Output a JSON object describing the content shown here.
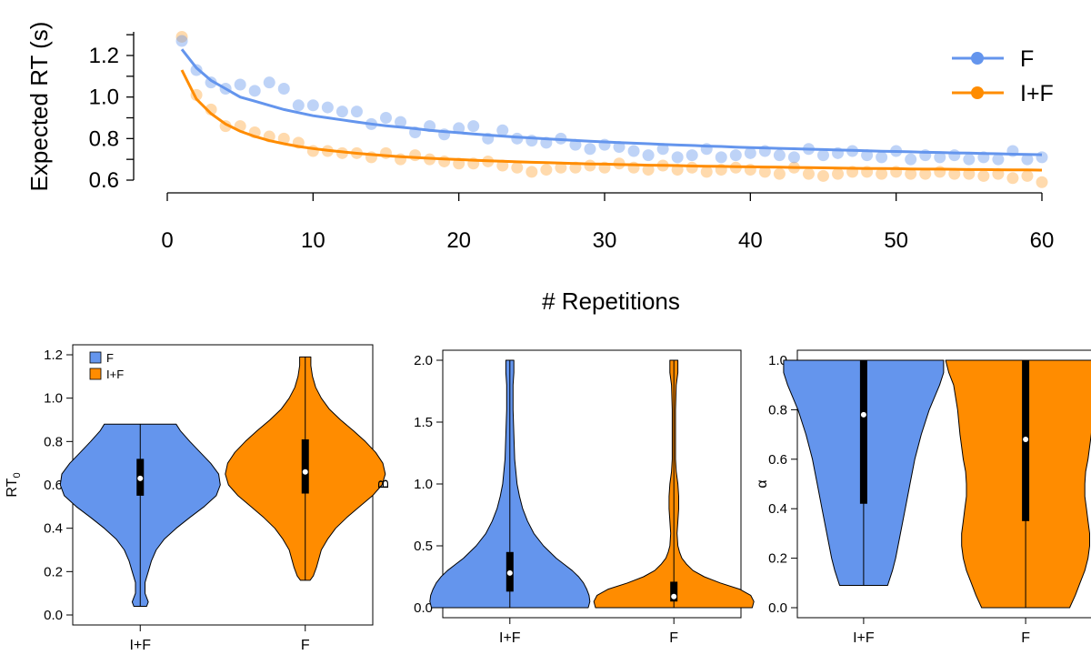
{
  "colors": {
    "F": "#6495ED",
    "IF": "#FF8C00",
    "axis": "#000000"
  },
  "chart_data": [
    {
      "type": "scatter",
      "title": "",
      "xlabel": "# Repetitions",
      "ylabel": "Expected RT (s)",
      "xlim": [
        0,
        60
      ],
      "ylim": [
        0.6,
        1.3
      ],
      "xticks": [
        0,
        10,
        20,
        30,
        40,
        50,
        60
      ],
      "xtick_labels": [
        "0",
        "10",
        "20",
        "30",
        "40",
        "50",
        "60"
      ],
      "yticks": [
        0.6,
        0.8,
        1.0,
        1.2
      ],
      "ytick_labels": [
        "0.6",
        "0.8",
        "1.0",
        "1.2"
      ],
      "legend": {
        "position": "top-right",
        "entries": [
          "F",
          "I+F"
        ]
      },
      "x": [
        1,
        2,
        3,
        4,
        5,
        6,
        7,
        8,
        9,
        10,
        11,
        12,
        13,
        14,
        15,
        16,
        17,
        18,
        19,
        20,
        21,
        22,
        23,
        24,
        25,
        26,
        27,
        28,
        29,
        30,
        31,
        32,
        33,
        34,
        35,
        36,
        37,
        38,
        39,
        40,
        41,
        42,
        43,
        44,
        45,
        46,
        47,
        48,
        49,
        50,
        51,
        52,
        53,
        54,
        55,
        56,
        57,
        58,
        59,
        60
      ],
      "series": [
        {
          "name": "F",
          "color": "#6495ED",
          "points": [
            1.27,
            1.13,
            1.07,
            1.04,
            1.06,
            1.03,
            1.07,
            1.04,
            0.96,
            0.96,
            0.95,
            0.93,
            0.93,
            0.87,
            0.9,
            0.88,
            0.83,
            0.86,
            0.82,
            0.85,
            0.86,
            0.8,
            0.84,
            0.8,
            0.79,
            0.78,
            0.8,
            0.77,
            0.75,
            0.77,
            0.76,
            0.74,
            0.72,
            0.75,
            0.71,
            0.72,
            0.75,
            0.71,
            0.72,
            0.73,
            0.74,
            0.72,
            0.71,
            0.75,
            0.72,
            0.73,
            0.74,
            0.72,
            0.71,
            0.74,
            0.7,
            0.72,
            0.71,
            0.72,
            0.7,
            0.71,
            0.7,
            0.74,
            0.7,
            0.71
          ],
          "fit": [
            1.23,
            1.14,
            1.08,
            1.04,
            1.0,
            0.98,
            0.96,
            0.94,
            0.925,
            0.91,
            0.9,
            0.89,
            0.88,
            0.87,
            0.862,
            0.855,
            0.848,
            0.84,
            0.834,
            0.828,
            0.822,
            0.817,
            0.812,
            0.807,
            0.803,
            0.799,
            0.795,
            0.791,
            0.787,
            0.784,
            0.781,
            0.778,
            0.775,
            0.772,
            0.769,
            0.767,
            0.764,
            0.762,
            0.759,
            0.757,
            0.755,
            0.753,
            0.751,
            0.749,
            0.747,
            0.745,
            0.743,
            0.741,
            0.739,
            0.738,
            0.736,
            0.734,
            0.733,
            0.731,
            0.73,
            0.728,
            0.727,
            0.725,
            0.724,
            0.722
          ]
        },
        {
          "name": "I+F",
          "color": "#FF8C00",
          "points": [
            1.29,
            1.01,
            0.94,
            0.86,
            0.86,
            0.83,
            0.81,
            0.8,
            0.78,
            0.74,
            0.74,
            0.73,
            0.73,
            0.71,
            0.73,
            0.7,
            0.72,
            0.7,
            0.69,
            0.68,
            0.68,
            0.69,
            0.67,
            0.66,
            0.64,
            0.65,
            0.66,
            0.66,
            0.67,
            0.66,
            0.68,
            0.66,
            0.65,
            0.67,
            0.65,
            0.66,
            0.64,
            0.65,
            0.66,
            0.65,
            0.64,
            0.63,
            0.66,
            0.63,
            0.62,
            0.63,
            0.64,
            0.64,
            0.63,
            0.64,
            0.63,
            0.63,
            0.64,
            0.63,
            0.63,
            0.62,
            0.63,
            0.61,
            0.62,
            0.59
          ],
          "fit": [
            1.13,
            0.99,
            0.92,
            0.87,
            0.835,
            0.81,
            0.79,
            0.775,
            0.762,
            0.752,
            0.743,
            0.736,
            0.729,
            0.723,
            0.718,
            0.713,
            0.709,
            0.705,
            0.702,
            0.699,
            0.696,
            0.693,
            0.691,
            0.688,
            0.686,
            0.684,
            0.682,
            0.68,
            0.678,
            0.677,
            0.675,
            0.674,
            0.672,
            0.671,
            0.67,
            0.668,
            0.667,
            0.666,
            0.665,
            0.664,
            0.663,
            0.662,
            0.661,
            0.66,
            0.659,
            0.658,
            0.657,
            0.656,
            0.656,
            0.655,
            0.654,
            0.653,
            0.653,
            0.652,
            0.651,
            0.651,
            0.65,
            0.649,
            0.649,
            0.648
          ]
        }
      ]
    },
    {
      "type": "violin",
      "title": "",
      "xlabel": "",
      "ylabel": "RT",
      "ylabel_sub": "0",
      "ylim": [
        0,
        1.2
      ],
      "yticks": [
        0,
        0.2,
        0.4,
        0.6,
        0.8,
        1.0,
        1.2
      ],
      "ytick_labels": [
        "0.0",
        "0.2",
        "0.4",
        "0.6",
        "0.8",
        "1.0",
        "1.2"
      ],
      "categories": [
        "I+F",
        "F"
      ],
      "legend": {
        "position": "top-left",
        "entries": [
          "F",
          "I+F"
        ]
      },
      "groups": [
        {
          "name": "I+F",
          "color": "#6495ED",
          "min": 0.04,
          "q1": 0.55,
          "median": 0.63,
          "q3": 0.72,
          "max": 0.88,
          "density_y": [
            0.04,
            0.06,
            0.1,
            0.15,
            0.2,
            0.25,
            0.3,
            0.35,
            0.4,
            0.45,
            0.5,
            0.55,
            0.6,
            0.65,
            0.7,
            0.75,
            0.8,
            0.85,
            0.88
          ],
          "density_w": [
            0.08,
            0.1,
            0.06,
            0.06,
            0.1,
            0.14,
            0.2,
            0.3,
            0.45,
            0.62,
            0.8,
            0.95,
            1.0,
            0.98,
            0.88,
            0.75,
            0.62,
            0.5,
            0.45
          ]
        },
        {
          "name": "F",
          "color": "#FF8C00",
          "min": 0.16,
          "q1": 0.56,
          "median": 0.66,
          "q3": 0.81,
          "max": 1.19,
          "density_y": [
            0.16,
            0.18,
            0.22,
            0.3,
            0.35,
            0.4,
            0.45,
            0.5,
            0.55,
            0.6,
            0.65,
            0.7,
            0.75,
            0.8,
            0.85,
            0.9,
            0.95,
            1.0,
            1.05,
            1.1,
            1.15,
            1.19
          ],
          "density_w": [
            0.06,
            0.1,
            0.14,
            0.2,
            0.28,
            0.38,
            0.52,
            0.68,
            0.84,
            0.96,
            1.0,
            0.97,
            0.88,
            0.75,
            0.6,
            0.44,
            0.3,
            0.2,
            0.13,
            0.09,
            0.07,
            0.07
          ]
        }
      ]
    },
    {
      "type": "violin",
      "title": "",
      "xlabel": "",
      "ylabel": "B",
      "ylim": [
        0,
        2.0
      ],
      "yticks": [
        0,
        0.5,
        1.0,
        1.5,
        2.0
      ],
      "ytick_labels": [
        "0.0",
        "0.5",
        "1.0",
        "1.5",
        "2.0"
      ],
      "categories": [
        "I+F",
        "F"
      ],
      "groups": [
        {
          "name": "I+F",
          "color": "#6495ED",
          "min": 0.0,
          "q1": 0.13,
          "median": 0.28,
          "q3": 0.45,
          "max": 2.0,
          "density_y": [
            0.0,
            0.05,
            0.1,
            0.15,
            0.2,
            0.25,
            0.3,
            0.35,
            0.4,
            0.5,
            0.6,
            0.7,
            0.8,
            0.9,
            1.0,
            1.2,
            1.4,
            1.6,
            1.8,
            1.9,
            2.0
          ],
          "density_w": [
            0.98,
            1.0,
            0.99,
            0.96,
            0.92,
            0.86,
            0.78,
            0.68,
            0.58,
            0.42,
            0.3,
            0.22,
            0.16,
            0.12,
            0.09,
            0.06,
            0.05,
            0.04,
            0.04,
            0.05,
            0.05
          ]
        },
        {
          "name": "F",
          "color": "#FF8C00",
          "min": 0.0,
          "q1": 0.05,
          "median": 0.09,
          "q3": 0.21,
          "max": 2.0,
          "density_y": [
            0.0,
            0.05,
            0.1,
            0.15,
            0.2,
            0.25,
            0.3,
            0.35,
            0.4,
            0.45,
            0.5,
            0.6,
            0.7,
            0.8,
            0.9,
            1.0,
            1.1,
            1.2,
            1.4,
            1.6,
            1.8,
            1.9,
            2.0
          ],
          "density_w": [
            0.98,
            1.0,
            0.96,
            0.82,
            0.58,
            0.38,
            0.24,
            0.16,
            0.1,
            0.07,
            0.05,
            0.04,
            0.05,
            0.06,
            0.06,
            0.05,
            0.03,
            0.02,
            0.02,
            0.02,
            0.03,
            0.05,
            0.05
          ]
        }
      ]
    },
    {
      "type": "violin",
      "title": "",
      "xlabel": "",
      "ylabel": "α",
      "ylim": [
        0,
        1.0
      ],
      "yticks": [
        0,
        0.2,
        0.4,
        0.6,
        0.8,
        1.0
      ],
      "ytick_labels": [
        "0.0",
        "0.2",
        "0.4",
        "0.6",
        "0.8",
        "1.0"
      ],
      "categories": [
        "I+F",
        "F"
      ],
      "groups": [
        {
          "name": "I+F",
          "color": "#6495ED",
          "min": 0.09,
          "q1": 0.42,
          "median": 0.78,
          "q3": 1.0,
          "max": 1.0,
          "density_y": [
            0.09,
            0.15,
            0.2,
            0.3,
            0.4,
            0.5,
            0.6,
            0.7,
            0.8,
            0.9,
            0.95,
            1.0
          ],
          "density_w": [
            0.3,
            0.36,
            0.4,
            0.46,
            0.52,
            0.58,
            0.64,
            0.72,
            0.82,
            0.95,
            1.0,
            1.0
          ]
        },
        {
          "name": "F",
          "color": "#FF8C00",
          "min": 0.0,
          "q1": 0.35,
          "median": 0.68,
          "q3": 1.0,
          "max": 1.0,
          "density_y": [
            0.0,
            0.05,
            0.1,
            0.15,
            0.2,
            0.25,
            0.3,
            0.35,
            0.4,
            0.45,
            0.5,
            0.55,
            0.6,
            0.65,
            0.7,
            0.8,
            0.9,
            0.95,
            1.0
          ],
          "density_w": [
            0.55,
            0.62,
            0.68,
            0.74,
            0.78,
            0.8,
            0.8,
            0.78,
            0.76,
            0.74,
            0.74,
            0.75,
            0.78,
            0.8,
            0.82,
            0.85,
            0.9,
            0.96,
            1.0
          ]
        }
      ]
    }
  ]
}
